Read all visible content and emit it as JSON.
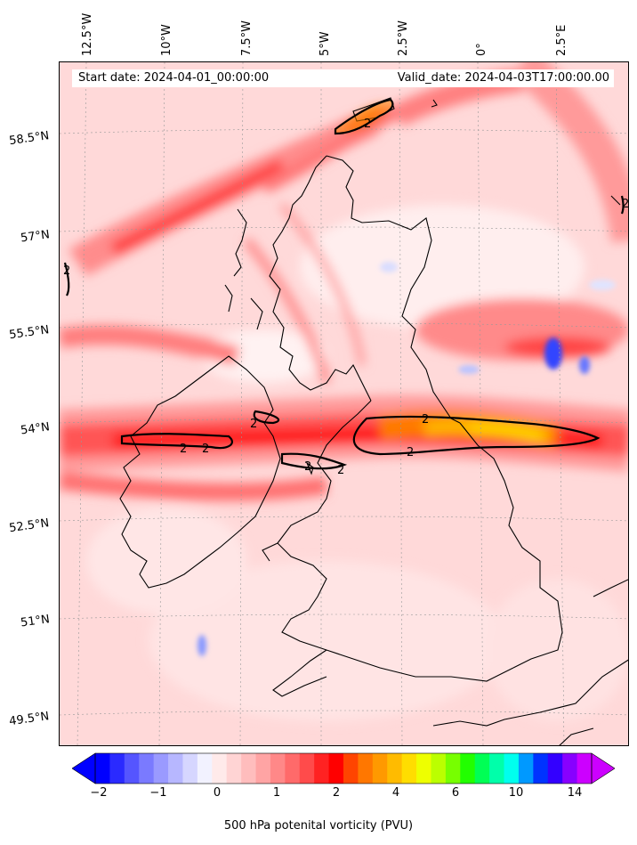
{
  "header": {
    "start_date": "Start date: 2024-04-01_00:00:00",
    "valid_date": "Valid_date: 2024-04-03T17:00:00.00"
  },
  "axes": {
    "lon_labels": [
      "12.5°W",
      "10°W",
      "7.5°W",
      "5°W",
      "2.5°W",
      "0°",
      "2.5°E"
    ],
    "lat_labels": [
      "58.5°N",
      "57°N",
      "55.5°N",
      "54°N",
      "52.5°N",
      "51°N",
      "49.5°N"
    ]
  },
  "contour": {
    "level": "2",
    "color": "#000000"
  },
  "colorbar": {
    "title": "500 hPa potenital vorticity (PVU)",
    "tick_labels": [
      "−2",
      "−1",
      "0",
      "1",
      "2",
      "4",
      "6",
      "10",
      "14"
    ],
    "colors": [
      "#0000ff",
      "#2a2aff",
      "#5555ff",
      "#7a7aff",
      "#9a9aff",
      "#b7b7ff",
      "#d6d6ff",
      "#f2f2ff",
      "#ffeaea",
      "#ffd4d4",
      "#ffbdbd",
      "#ffa4a4",
      "#ff8888",
      "#ff6a6a",
      "#ff4b4b",
      "#ff2222",
      "#ff0000",
      "#ff4400",
      "#ff7700",
      "#ff9900",
      "#ffbb00",
      "#ffdd00",
      "#eeff00",
      "#bbff00",
      "#77ff00",
      "#22ff00",
      "#00ff55",
      "#00ffaa",
      "#00ffee",
      "#0099ff",
      "#0033ff",
      "#3300ff",
      "#8800ff",
      "#cc00ff"
    ],
    "under_color": "#0000ff",
    "over_color": "#cc00ff"
  }
}
